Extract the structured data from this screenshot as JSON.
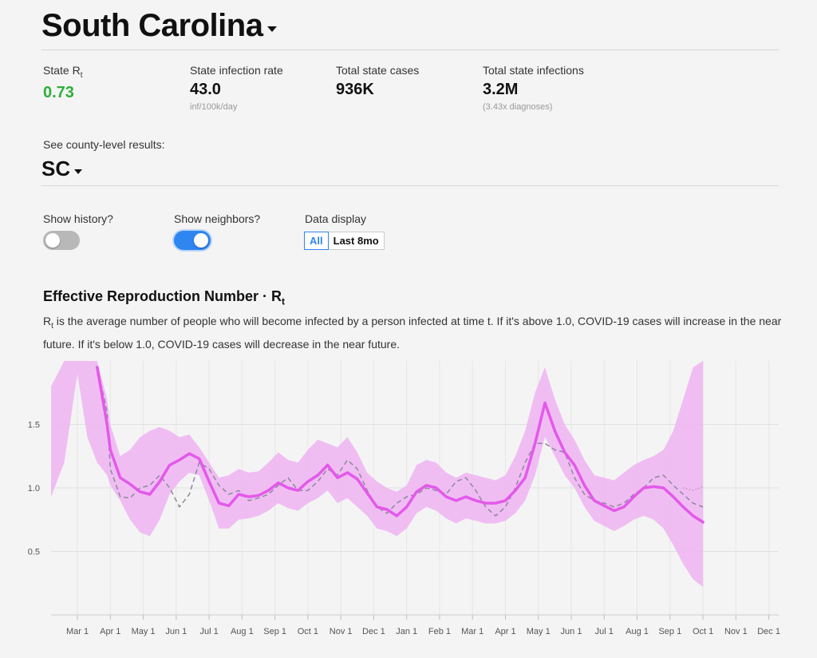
{
  "header": {
    "title": "South Carolina"
  },
  "stats": [
    {
      "label": "State R",
      "label_sub": "t",
      "value": "0.73",
      "sub": ""
    },
    {
      "label": "State infection rate",
      "label_sub": "",
      "value": "43.0",
      "sub": "inf/100k/day"
    },
    {
      "label": "Total state cases",
      "label_sub": "",
      "value": "936K",
      "sub": ""
    },
    {
      "label": "Total state infections",
      "label_sub": "",
      "value": "3.2M",
      "sub": "(3.43x diagnoses)"
    }
  ],
  "county": {
    "label": "See county-level results:",
    "value": "SC"
  },
  "options": {
    "history_label": "Show history?",
    "neighbors_label": "Show neighbors?",
    "display_label": "Data display",
    "display_all": "All",
    "display_recent": "Last 8mo"
  },
  "chart_section": {
    "title": "Effective Reproduction Number · R",
    "title_sub": "t",
    "desc_r": "R",
    "desc_sub": "t",
    "desc_text": " is the average number of people who will become infected by a person infected at time t. If it's above 1.0, COVID-19 cases will increase in the near future. If it's below 1.0, COVID-19 cases will decrease in the near future."
  },
  "colors": {
    "rt_line": "#e359ea",
    "band": "#eeb3f2",
    "dashed": "#8a8a9a",
    "green": "#2fae3b",
    "accent": "#2f86f0"
  },
  "chart_data": {
    "type": "line",
    "x_ticks": [
      "Mar 1",
      "Apr 1",
      "May 1",
      "Jun 1",
      "Jul 1",
      "Aug 1",
      "Sep 1",
      "Oct 1",
      "Nov 1",
      "Dec 1",
      "Jan 1",
      "Feb 1",
      "Mar 1",
      "Apr 1",
      "May 1",
      "Jun 1",
      "Jul 1",
      "Aug 1",
      "Sep 1",
      "Oct 1",
      "Nov 1",
      "Dec 1"
    ],
    "y_ticks": [
      "0.5",
      "1.0",
      "1.5"
    ],
    "ylim": [
      0,
      2.0
    ],
    "xlim": [
      -0.8,
      21.3
    ],
    "x": [
      -0.8,
      -0.4,
      0,
      0.3,
      0.6,
      0.9,
      1.0,
      1.3,
      1.6,
      1.9,
      2.2,
      2.5,
      2.8,
      3.1,
      3.4,
      3.7,
      4.0,
      4.3,
      4.6,
      4.9,
      5.2,
      5.5,
      5.8,
      6.1,
      6.4,
      6.7,
      7.0,
      7.3,
      7.6,
      7.9,
      8.2,
      8.5,
      8.8,
      9.1,
      9.4,
      9.7,
      10.0,
      10.3,
      10.6,
      10.9,
      11.2,
      11.5,
      11.8,
      12.1,
      12.4,
      12.7,
      13.0,
      13.3,
      13.6,
      13.9,
      14.2,
      14.5,
      14.8,
      15.1,
      15.4,
      15.7,
      16.0,
      16.3,
      16.6,
      16.9,
      17.2,
      17.5,
      17.8,
      18.1,
      18.4,
      18.7,
      19.0,
      19.3,
      19.6,
      19.9,
      20.2,
      20.5,
      20.8,
      21.1,
      21.3
    ],
    "series": [
      {
        "values": [
          null,
          null,
          null,
          null,
          1.95,
          1.5,
          1.3,
          1.08,
          1.03,
          0.97,
          0.95,
          1.05,
          1.18,
          1.22,
          1.27,
          1.23,
          1.05,
          0.88,
          0.86,
          0.95,
          0.93,
          0.94,
          0.98,
          1.04,
          1.0,
          0.98,
          1.05,
          1.1,
          1.18,
          1.08,
          1.12,
          1.07,
          0.96,
          0.85,
          0.83,
          0.78,
          0.85,
          0.97,
          1.02,
          1.0,
          0.93,
          0.9,
          0.93,
          0.9,
          0.88,
          0.88,
          0.9,
          0.98,
          1.08,
          1.35,
          1.67,
          1.45,
          1.28,
          1.18,
          1.02,
          0.9,
          0.86,
          0.82,
          0.85,
          0.93,
          1.0,
          1.01,
          1.0,
          0.93,
          0.85,
          0.78,
          0.73,
          null,
          null,
          null,
          null,
          null,
          null,
          null,
          null
        ],
        "upper": [
          1.8,
          2.0,
          2.0,
          2.0,
          2.0,
          1.7,
          1.5,
          1.25,
          1.3,
          1.4,
          1.45,
          1.48,
          1.45,
          1.4,
          1.42,
          1.32,
          1.2,
          1.08,
          1.1,
          1.15,
          1.12,
          1.13,
          1.2,
          1.28,
          1.22,
          1.2,
          1.3,
          1.38,
          1.35,
          1.32,
          1.4,
          1.28,
          1.12,
          1.05,
          1.0,
          0.97,
          1.02,
          1.18,
          1.22,
          1.2,
          1.12,
          1.08,
          1.12,
          1.1,
          1.08,
          1.06,
          1.1,
          1.25,
          1.45,
          1.75,
          1.95,
          1.7,
          1.5,
          1.38,
          1.22,
          1.1,
          1.08,
          1.06,
          1.12,
          1.18,
          1.22,
          1.25,
          1.3,
          1.45,
          1.7,
          1.95,
          2.0,
          null,
          null,
          null,
          null,
          null,
          null,
          null,
          null
        ],
        "lower": [
          0.93,
          1.2,
          1.9,
          1.4,
          1.2,
          1.1,
          1.02,
          0.9,
          0.75,
          0.65,
          0.62,
          0.75,
          0.95,
          1.05,
          1.12,
          1.1,
          0.9,
          0.68,
          0.68,
          0.75,
          0.76,
          0.78,
          0.82,
          0.88,
          0.84,
          0.82,
          0.88,
          0.92,
          0.98,
          0.88,
          0.92,
          0.85,
          0.78,
          0.68,
          0.66,
          0.62,
          0.68,
          0.8,
          0.85,
          0.82,
          0.76,
          0.72,
          0.76,
          0.74,
          0.72,
          0.72,
          0.74,
          0.8,
          0.9,
          1.1,
          1.4,
          1.25,
          1.1,
          1.0,
          0.85,
          0.74,
          0.7,
          0.66,
          0.7,
          0.75,
          0.78,
          0.75,
          0.68,
          0.55,
          0.4,
          0.28,
          0.22,
          null,
          null,
          null,
          null,
          null,
          null,
          null,
          null
        ]
      },
      {
        "values": [
          null,
          null,
          null,
          null,
          1.95,
          1.6,
          1.15,
          0.93,
          0.92,
          1.0,
          1.02,
          1.1,
          1.0,
          0.85,
          0.95,
          1.2,
          1.15,
          1.02,
          0.95,
          0.98,
          0.9,
          0.92,
          0.95,
          1.02,
          1.08,
          0.98,
          0.98,
          1.05,
          1.15,
          1.1,
          1.22,
          1.15,
          0.98,
          0.85,
          0.8,
          0.88,
          0.93,
          0.95,
          1.0,
          0.98,
          0.95,
          1.05,
          1.08,
          0.98,
          0.85,
          0.78,
          0.85,
          1.0,
          1.2,
          1.35,
          1.35,
          1.3,
          1.28,
          1.08,
          0.95,
          0.9,
          0.88,
          0.85,
          0.88,
          0.95,
          1.0,
          1.08,
          1.1,
          1.02,
          0.95,
          0.88,
          0.85,
          null,
          null,
          null,
          null,
          null,
          null,
          null,
          null
        ],
        "dash": true
      },
      {
        "values": [
          null,
          null,
          null,
          null,
          null,
          null,
          null,
          null,
          null,
          null,
          null,
          null,
          null,
          null,
          null,
          null,
          null,
          null,
          null,
          null,
          null,
          null,
          null,
          null,
          null,
          null,
          null,
          null,
          null,
          null,
          null,
          null,
          null,
          null,
          null,
          null,
          null,
          null,
          null,
          null,
          null,
          null,
          null,
          null,
          null,
          null,
          null,
          null,
          null,
          null,
          null,
          null,
          null,
          null,
          null,
          null,
          null,
          null,
          null,
          null,
          null,
          null,
          null,
          null,
          1.0,
          0.98,
          1.01,
          null,
          null,
          null,
          null,
          null,
          null,
          null,
          null
        ],
        "dotted": true
      }
    ]
  }
}
